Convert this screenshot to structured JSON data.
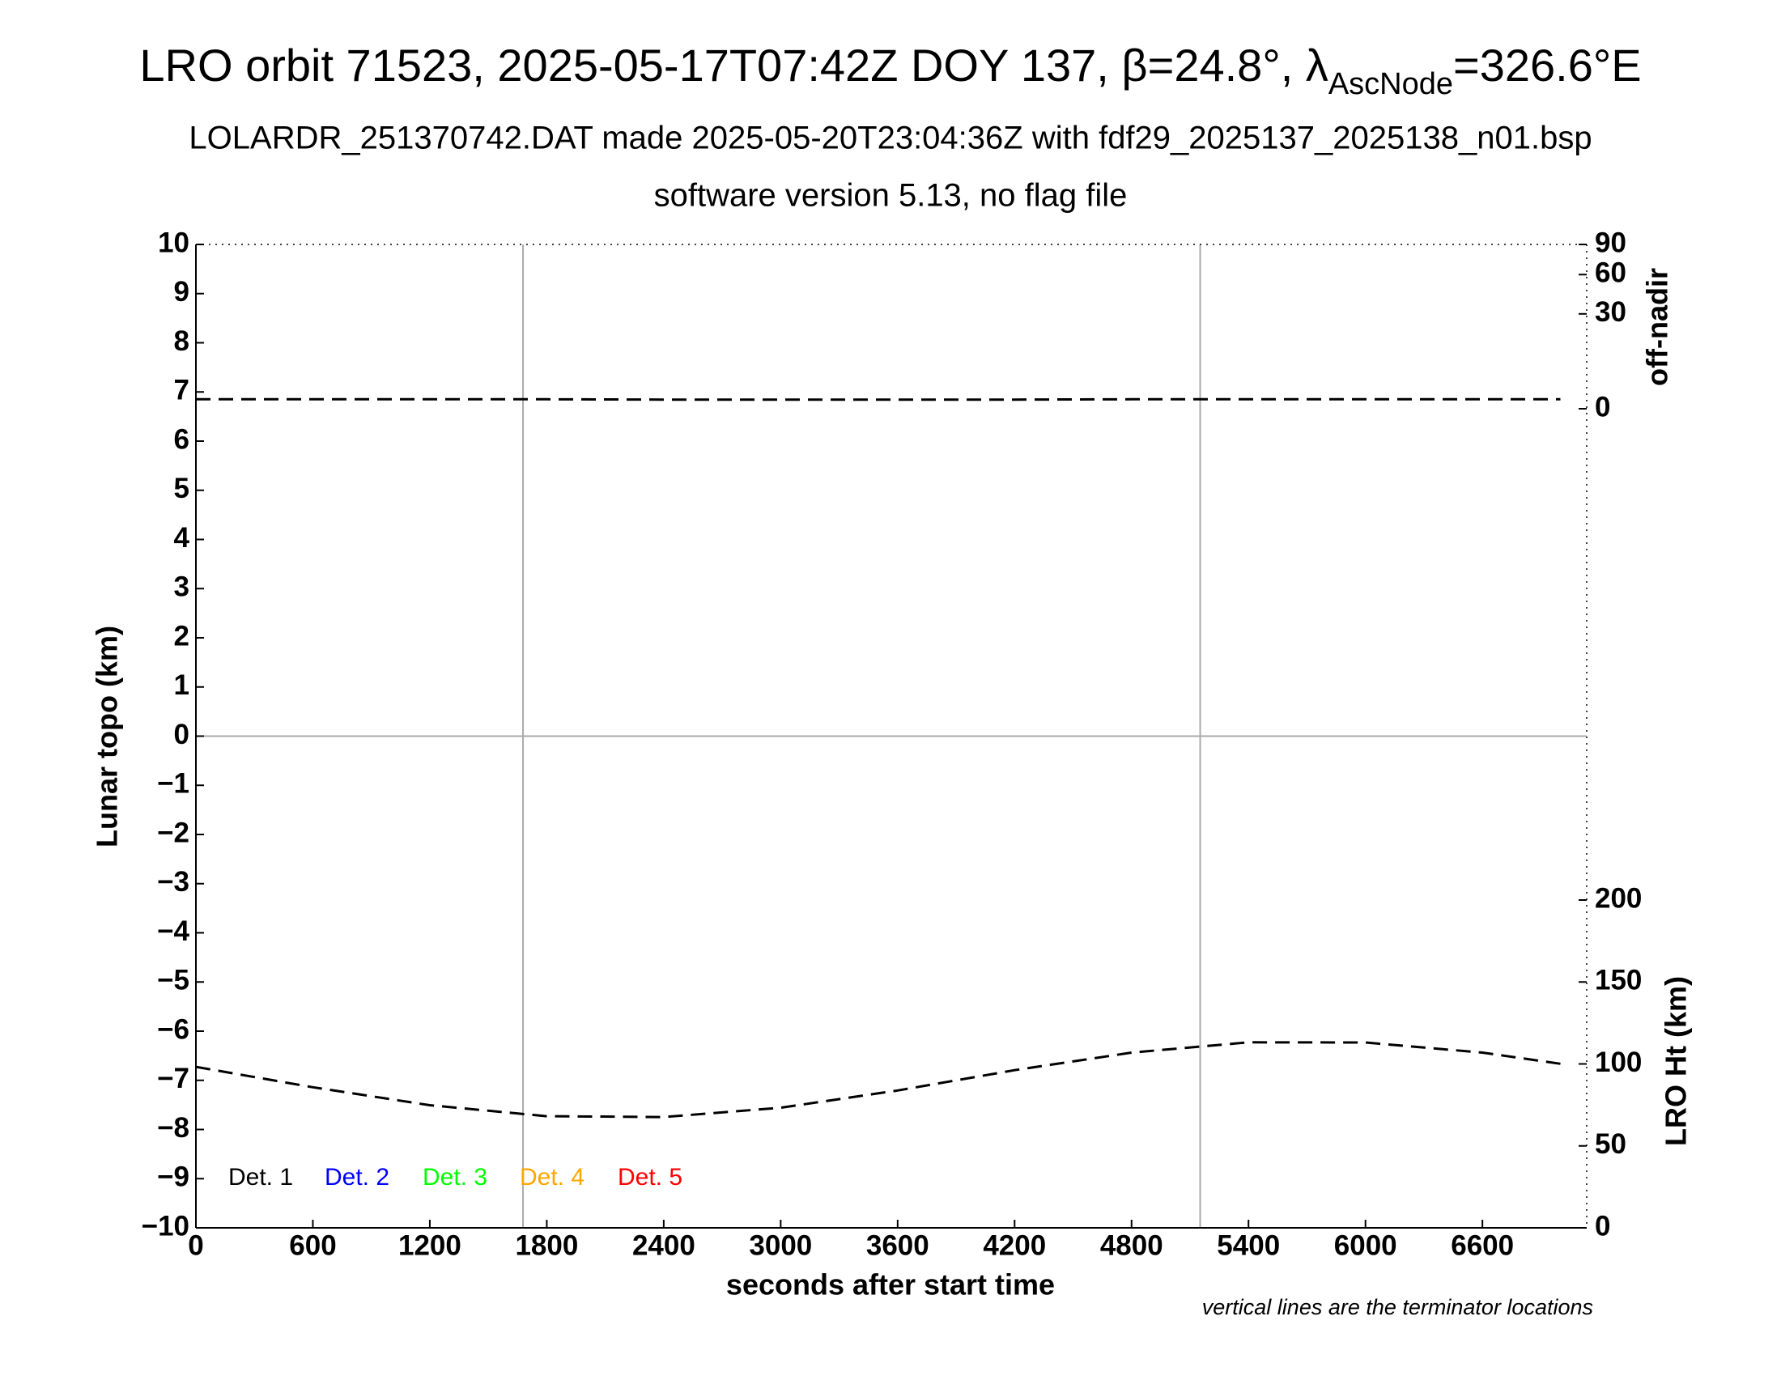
{
  "chart_data": {
    "type": "line",
    "title": "LRO orbit 71523, 2025-05-17T07:42Z DOY 137, β=24.8°, λ",
    "title_sub": "AscNode",
    "title_end": "=326.6°E",
    "subtitle": "LOLARDR_251370742.DAT made 2025-05-20T23:04:36Z with fdf29_2025137_2025138_n01.bsp",
    "subtitle2": "software version 5.13, no flag file",
    "xlabel": "seconds after start time",
    "ylabel": "Lunar topo (km)",
    "y2label": "LRO Ht (km)",
    "y3label": "off-nadir",
    "note": "vertical lines are the terminator locations",
    "xlim": [
      0,
      7135
    ],
    "xticks": [
      0,
      600,
      1200,
      1800,
      2400,
      3000,
      3600,
      4200,
      4800,
      5400,
      6000,
      6600
    ],
    "ylim": [
      -10,
      10
    ],
    "yticks": [
      {
        "value": -10,
        "label": "−10"
      },
      {
        "value": -9,
        "label": "−9"
      },
      {
        "value": -8,
        "label": "−8"
      },
      {
        "value": -7,
        "label": "−7"
      },
      {
        "value": -6,
        "label": "−6"
      },
      {
        "value": -5,
        "label": "−5"
      },
      {
        "value": -4,
        "label": "−4"
      },
      {
        "value": -3,
        "label": "−3"
      },
      {
        "value": -2,
        "label": "−2"
      },
      {
        "value": -1,
        "label": "−1"
      },
      0,
      1,
      2,
      3,
      4,
      5,
      6,
      7,
      8,
      9,
      10
    ],
    "y2lim": [
      0,
      600
    ],
    "y2ticks": [
      0,
      50,
      100,
      150,
      200
    ],
    "y3lim": [
      0,
      90
    ],
    "y3ticks": [
      0,
      30,
      60,
      90
    ],
    "y3scale": "sqrt",
    "terminators": [
      1678,
      5152
    ],
    "zero_line": 0,
    "x": [
      0,
      600,
      1200,
      1800,
      2400,
      3000,
      3600,
      4200,
      4800,
      5400,
      6000,
      6600,
      7000
    ],
    "series": [
      {
        "axis": "y2",
        "color": "#000000",
        "values": [
          98.2,
          85.8,
          74.8,
          68.1,
          67.6,
          73.3,
          83.8,
          96.2,
          106.9,
          113.2,
          113.1,
          106.9,
          100.1
        ]
      },
      {
        "axis": "y3",
        "color": "#000000",
        "values": [
          0.3,
          0.3,
          0.3,
          0.3,
          0.28,
          0.28,
          0.28,
          0.28,
          0.3,
          0.3,
          0.3,
          0.3,
          0.3
        ]
      }
    ],
    "legend": [
      "Det. 1",
      "Det. 2",
      "Det. 3",
      "Det. 4",
      "Det. 5"
    ],
    "legend_colors": [
      "#000000",
      "#0000ff",
      "#00ff00",
      "#ffa500",
      "#ff0000"
    ]
  }
}
